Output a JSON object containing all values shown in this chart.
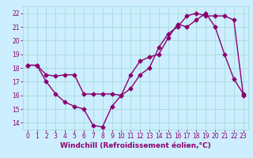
{
  "line1_x": [
    0,
    1,
    2,
    3,
    4,
    5,
    6,
    7,
    8,
    9,
    10,
    11,
    12,
    13,
    14,
    15,
    16,
    17,
    18,
    19,
    20,
    21,
    22,
    23
  ],
  "line1_y": [
    18.2,
    18.2,
    17.0,
    16.1,
    15.5,
    15.2,
    15.0,
    13.8,
    13.7,
    15.2,
    16.0,
    17.5,
    18.5,
    18.8,
    19.0,
    20.2,
    21.2,
    21.0,
    21.5,
    22.0,
    21.0,
    19.0,
    17.2,
    16.1
  ],
  "line2_x": [
    0,
    1,
    2,
    3,
    4,
    5,
    6,
    7,
    8,
    9,
    10,
    11,
    12,
    13,
    14,
    15,
    16,
    17,
    18,
    19,
    20,
    21,
    22,
    23
  ],
  "line2_y": [
    18.2,
    18.2,
    17.5,
    17.4,
    17.5,
    17.5,
    16.1,
    16.1,
    16.1,
    16.1,
    16.0,
    16.5,
    17.5,
    18.0,
    19.5,
    20.5,
    21.0,
    21.8,
    22.0,
    21.8,
    21.8,
    21.8,
    21.5,
    16.0
  ],
  "line_color": "#8B0070",
  "bg_color": "#cceeff",
  "grid_color": "#aadddd",
  "ylim_min": 13.5,
  "ylim_max": 22.5,
  "yticks": [
    14,
    15,
    16,
    17,
    18,
    19,
    20,
    21,
    22
  ],
  "xlim_min": -0.5,
  "xlim_max": 23.5,
  "xticks": [
    0,
    1,
    2,
    3,
    4,
    5,
    6,
    7,
    8,
    9,
    10,
    11,
    12,
    13,
    14,
    15,
    16,
    17,
    18,
    19,
    20,
    21,
    22,
    23
  ],
  "xlabel": "Windchill (Refroidissement éolien,°C)",
  "marker": "D",
  "markersize": 2.5,
  "linewidth": 1.0,
  "xlabel_color": "#8B0070",
  "xlabel_fontsize": 6.5,
  "tick_labelsize": 5.5
}
